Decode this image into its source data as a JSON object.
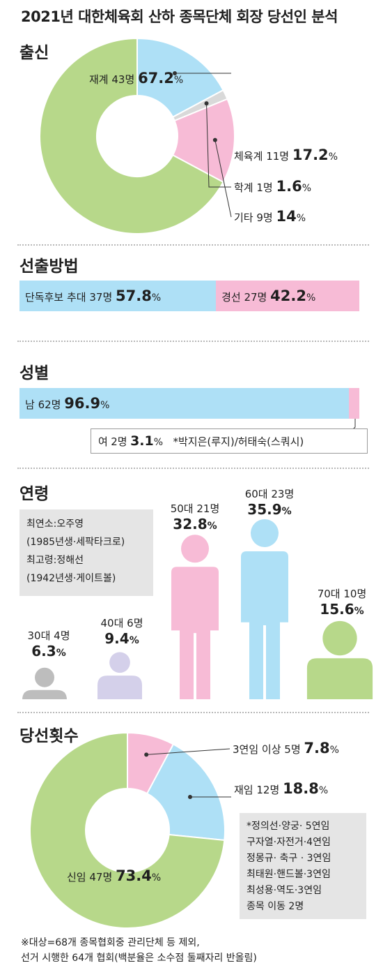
{
  "title": "2021년 대한체육회 산하 종목단체 회장 당선인 분석",
  "colors": {
    "green": "#b7d88a",
    "blue": "#aee0f6",
    "pink": "#f7bbd6",
    "gray": "#bdbdbd",
    "lavender": "#d4d0ea",
    "dark": "#1f1f1f"
  },
  "chart_data": [
    {
      "type": "pie",
      "title": "출신",
      "slices": [
        {
          "label": "재계",
          "count_text": "43명",
          "value": 67.2,
          "value_text": "67.2",
          "unit": "%",
          "color": "#b7d88a"
        },
        {
          "label": "체육계",
          "count_text": "11명",
          "value": 17.2,
          "value_text": "17.2",
          "unit": "%",
          "color": "#aee0f6"
        },
        {
          "label": "학계",
          "count_text": "1명",
          "value": 1.6,
          "value_text": "1.6",
          "unit": "%",
          "color": "#d9d9d9"
        },
        {
          "label": "기타",
          "count_text": "9명",
          "value": 14,
          "value_text": "14",
          "unit": "%",
          "color": "#f7bbd6"
        }
      ]
    },
    {
      "type": "bar",
      "title": "선출방법",
      "segments": [
        {
          "label": "단독후보 추대",
          "count_text": "37명",
          "value": 57.8,
          "value_text": "57.8",
          "unit": "%",
          "color": "#aee0f6"
        },
        {
          "label": "경선",
          "count_text": "27명",
          "value": 42.2,
          "value_text": "42.2",
          "unit": "%",
          "color": "#f7bbd6"
        }
      ]
    },
    {
      "type": "bar",
      "title": "성별",
      "segments": [
        {
          "label": "남",
          "count_text": "62명",
          "value": 96.9,
          "value_text": "96.9",
          "unit": "%",
          "color": "#aee0f6"
        },
        {
          "label": "여",
          "count_text": "2명",
          "value": 3.1,
          "value_text": "3.1",
          "unit": "%",
          "color": "#f7bbd6"
        }
      ],
      "note": "*박지은(루지)/허태숙(스쿼시)"
    },
    {
      "type": "bar",
      "title": "연령",
      "categories": [
        {
          "label": "30대",
          "count_text": "4명",
          "value": 6.3,
          "value_text": "6.3",
          "unit": "%",
          "color": "#bdbdbd"
        },
        {
          "label": "40대",
          "count_text": "6명",
          "value": 9.4,
          "value_text": "9.4",
          "unit": "%",
          "color": "#d4d0ea"
        },
        {
          "label": "50대",
          "count_text": "21명",
          "value": 32.8,
          "value_text": "32.8",
          "unit": "%",
          "color": "#f7bbd6"
        },
        {
          "label": "60대",
          "count_text": "23명",
          "value": 35.9,
          "value_text": "35.9",
          "unit": "%",
          "color": "#aee0f6"
        },
        {
          "label": "70대",
          "count_text": "10명",
          "value": 15.6,
          "value_text": "15.6",
          "unit": "%",
          "color": "#b7d88a"
        }
      ],
      "notes": [
        "최연소:오주영",
        "(1985년생·세팍타크로)",
        "최고령:정해선",
        "(1942년생·게이트볼)"
      ]
    },
    {
      "type": "pie",
      "title": "당선횟수",
      "slices": [
        {
          "label": "3연임 이상",
          "count_text": "5명",
          "value": 7.8,
          "value_text": "7.8",
          "unit": "%",
          "color": "#f7bbd6"
        },
        {
          "label": "재임",
          "count_text": "12명",
          "value": 18.8,
          "value_text": "18.8",
          "unit": "%",
          "color": "#aee0f6"
        },
        {
          "label": "신임",
          "count_text": "47명",
          "value": 73.4,
          "value_text": "73.4",
          "unit": "%",
          "color": "#b7d88a"
        }
      ],
      "notes": [
        "*정의선·양궁· 5연임",
        "구자열·자전거·4연임",
        "정몽규· 축구 · 3연임",
        "최태원·핸드볼·3연임",
        "최성용·역도·3연임",
        "종목 이동 2명"
      ]
    }
  ],
  "footnote": [
    "※대상=68개 종목협회중 관리단체 등 제외,",
    "선거 시행한 64개 협회(백분율은 소수점 둘째자리 반올림)"
  ]
}
